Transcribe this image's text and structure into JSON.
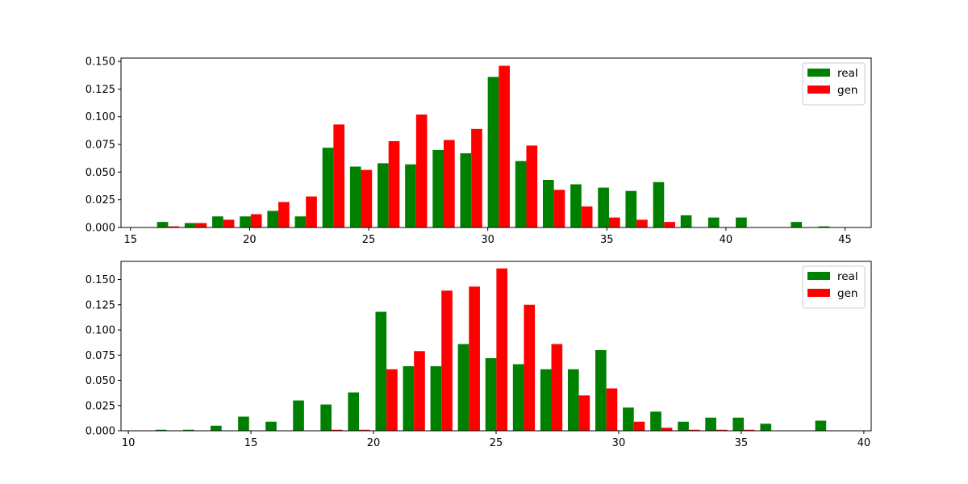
{
  "colors": {
    "real": "#008000",
    "gen": "#ff0000"
  },
  "chart_data": [
    {
      "type": "bar",
      "title": "",
      "xlabel": "",
      "ylabel": "",
      "xlim": [
        14.6,
        46.1
      ],
      "ylim": [
        0,
        0.153
      ],
      "bin_start": 16.0,
      "bin_width": 1.157,
      "xticks": [
        15,
        20,
        25,
        30,
        35,
        40,
        45
      ],
      "yticks": [
        "0.000",
        "0.025",
        "0.050",
        "0.075",
        "0.100",
        "0.125",
        "0.150"
      ],
      "legend_position": "top-right",
      "series": [
        {
          "name": "real",
          "values": [
            0.005,
            0.004,
            0.01,
            0.01,
            0.015,
            0.01,
            0.072,
            0.055,
            0.058,
            0.057,
            0.07,
            0.067,
            0.136,
            0.06,
            0.043,
            0.039,
            0.036,
            0.033,
            0.041,
            0.011,
            0.009,
            0.009,
            0.0,
            0.005,
            0.001,
            0.0
          ]
        },
        {
          "name": "gen",
          "values": [
            0.001,
            0.004,
            0.007,
            0.012,
            0.023,
            0.028,
            0.093,
            0.052,
            0.078,
            0.102,
            0.079,
            0.089,
            0.146,
            0.074,
            0.034,
            0.019,
            0.009,
            0.007,
            0.005,
            0.0,
            0.0,
            0.0,
            0.0,
            0.0,
            0.0,
            0.0
          ]
        }
      ]
    },
    {
      "type": "bar",
      "title": "",
      "xlabel": "",
      "ylabel": "",
      "xlim": [
        9.7,
        40.3
      ],
      "ylim": [
        0,
        0.168
      ],
      "bin_start": 11.0,
      "bin_width": 1.121,
      "xticks": [
        10,
        15,
        20,
        25,
        30,
        35,
        40
      ],
      "yticks": [
        "0.000",
        "0.025",
        "0.050",
        "0.075",
        "0.100",
        "0.125",
        "0.150"
      ],
      "legend_position": "top-right",
      "series": [
        {
          "name": "real",
          "values": [
            0.001,
            0.001,
            0.005,
            0.014,
            0.009,
            0.03,
            0.026,
            0.038,
            0.118,
            0.064,
            0.064,
            0.086,
            0.072,
            0.066,
            0.061,
            0.061,
            0.08,
            0.023,
            0.019,
            0.009,
            0.013,
            0.013,
            0.007,
            0.0,
            0.01,
            0.0
          ]
        },
        {
          "name": "gen",
          "values": [
            0.0,
            0.0,
            0.0,
            0.0,
            0.0,
            0.0,
            0.001,
            0.001,
            0.061,
            0.079,
            0.139,
            0.143,
            0.161,
            0.125,
            0.086,
            0.035,
            0.042,
            0.009,
            0.003,
            0.001,
            0.001,
            0.001,
            0.0,
            0.0,
            0.0,
            0.0
          ]
        }
      ]
    }
  ]
}
